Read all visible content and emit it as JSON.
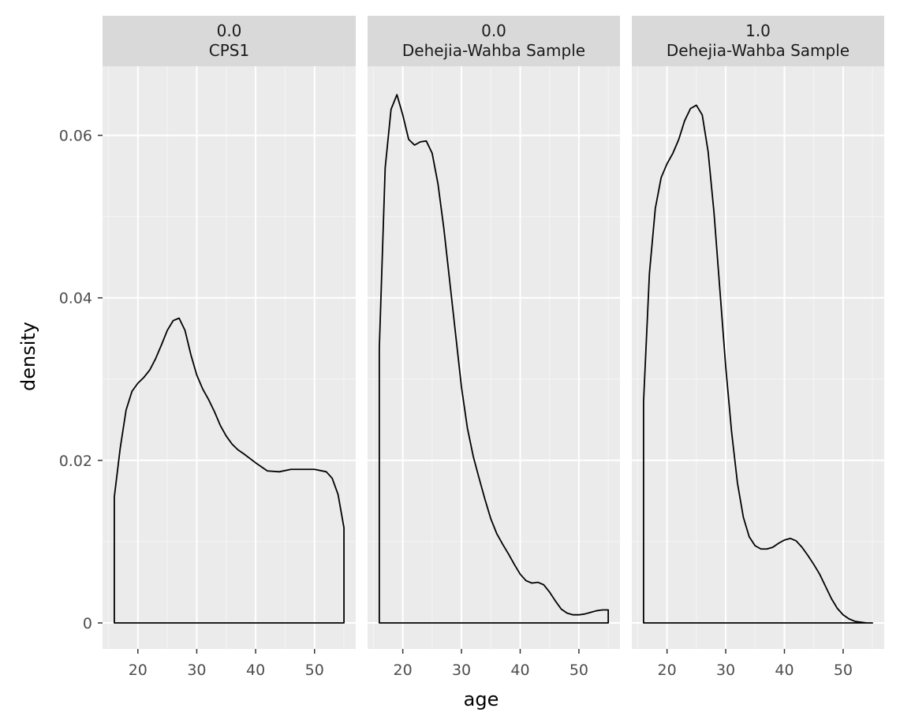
{
  "chart_data": {
    "type": "area",
    "xlabel": "age",
    "ylabel": "density",
    "xlim": [
      14,
      57
    ],
    "ylim": [
      -0.0032,
      0.0685
    ],
    "x_ticks": [
      20,
      30,
      40,
      50
    ],
    "x_tick_labels": [
      "20",
      "30",
      "40",
      "50"
    ],
    "y_ticks": [
      0,
      0.02,
      0.04,
      0.06
    ],
    "y_tick_labels": [
      "0",
      "0.02",
      "0.04",
      "0.06"
    ],
    "grid": true,
    "facets": [
      {
        "strip": [
          "0.0",
          "CPS1"
        ],
        "x": [
          16,
          17,
          18,
          19,
          20,
          21,
          22,
          23,
          24,
          25,
          26,
          27,
          28,
          29,
          30,
          31,
          32,
          33,
          34,
          35,
          36,
          37,
          38,
          40,
          42,
          44,
          46,
          48,
          50,
          52,
          53,
          54,
          55
        ],
        "y": [
          0.0155,
          0.0215,
          0.0262,
          0.0285,
          0.0295,
          0.0302,
          0.0311,
          0.0325,
          0.0342,
          0.036,
          0.0372,
          0.0375,
          0.036,
          0.033,
          0.0305,
          0.0288,
          0.0275,
          0.026,
          0.0243,
          0.023,
          0.022,
          0.0213,
          0.0208,
          0.0197,
          0.0187,
          0.0186,
          0.0189,
          0.0189,
          0.0189,
          0.0186,
          0.0178,
          0.0158,
          0.0117
        ]
      },
      {
        "strip": [
          "0.0",
          "Dehejia-Wahba Sample"
        ],
        "x": [
          16,
          17,
          18,
          19,
          20,
          21,
          22,
          23,
          24,
          25,
          26,
          27,
          28,
          29,
          30,
          31,
          32,
          33,
          34,
          35,
          36,
          37,
          38,
          39,
          40,
          41,
          42,
          43,
          44,
          45,
          46,
          47,
          48,
          49,
          50,
          51,
          52,
          53,
          54,
          55
        ],
        "y": [
          0.0338,
          0.056,
          0.0632,
          0.065,
          0.0625,
          0.0595,
          0.0588,
          0.0592,
          0.0593,
          0.0578,
          0.054,
          0.0485,
          0.042,
          0.0355,
          0.029,
          0.024,
          0.0205,
          0.0178,
          0.0152,
          0.0128,
          0.011,
          0.0097,
          0.0085,
          0.0072,
          0.006,
          0.0052,
          0.0049,
          0.005,
          0.0047,
          0.0038,
          0.0027,
          0.0017,
          0.0012,
          0.001,
          0.001,
          0.0011,
          0.0013,
          0.0015,
          0.0016,
          0.0016
        ]
      },
      {
        "strip": [
          "1.0",
          "Dehejia-Wahba Sample"
        ],
        "x": [
          16,
          17,
          18,
          19,
          20,
          21,
          22,
          23,
          24,
          25,
          26,
          27,
          28,
          29,
          30,
          31,
          32,
          33,
          34,
          35,
          36,
          37,
          38,
          39,
          40,
          41,
          42,
          43,
          44,
          45,
          46,
          47,
          48,
          49,
          50,
          51,
          52,
          53,
          54,
          55
        ],
        "y": [
          0.0272,
          0.043,
          0.051,
          0.0548,
          0.0565,
          0.0578,
          0.0595,
          0.0618,
          0.0633,
          0.0637,
          0.0625,
          0.058,
          0.0505,
          0.041,
          0.0315,
          0.0235,
          0.0172,
          0.013,
          0.0106,
          0.0095,
          0.0091,
          0.0091,
          0.0093,
          0.0098,
          0.0102,
          0.0104,
          0.0101,
          0.0093,
          0.0083,
          0.0072,
          0.006,
          0.0045,
          0.003,
          0.0018,
          0.001,
          0.0005,
          0.0002,
          0.0001,
          0.0,
          0.0
        ]
      }
    ]
  }
}
